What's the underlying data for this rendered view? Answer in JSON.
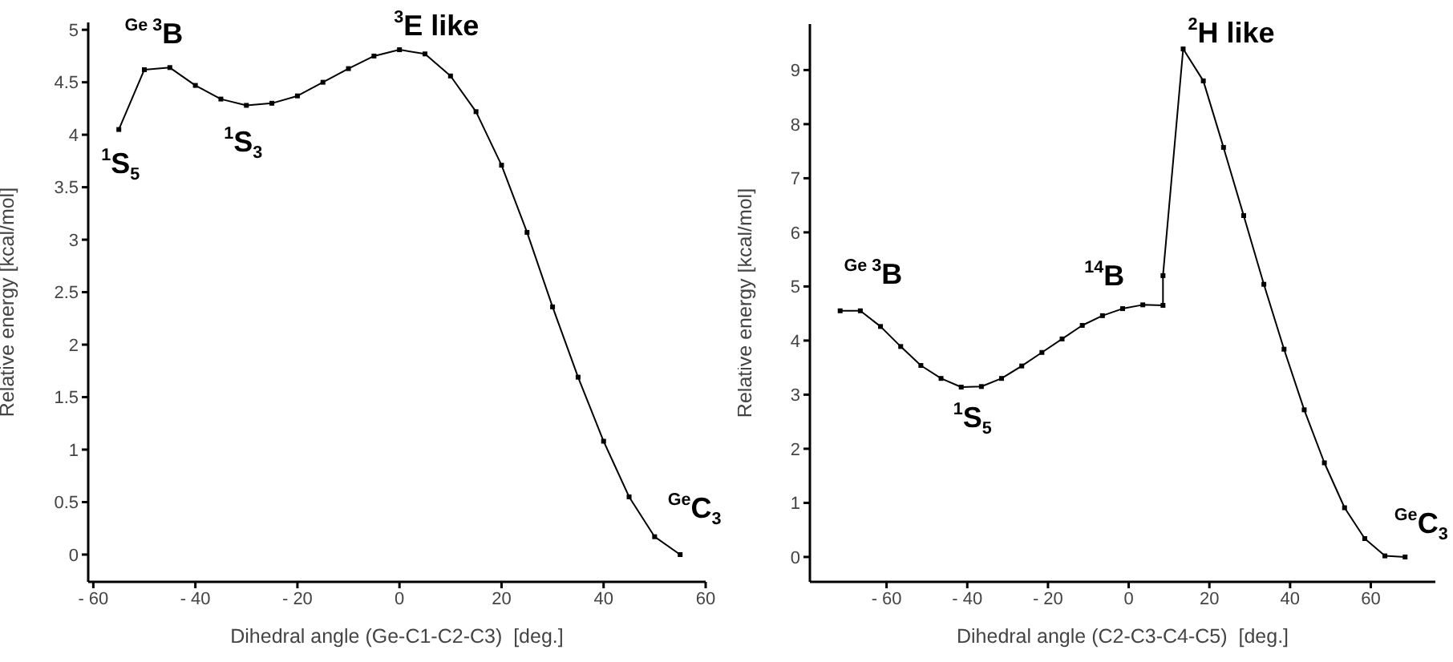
{
  "chart_data": [
    {
      "type": "line",
      "xlabel": "Dihedral angle (Ge-C1-C2-C3)  [deg.]",
      "ylabel": "Relative energy [kcal/mol]",
      "marker": "square",
      "grid": false,
      "legend": false,
      "x": [
        -55,
        -50,
        -45,
        -40,
        -35,
        -30,
        -25,
        -20,
        -15,
        -10,
        -5,
        0,
        5,
        10,
        15,
        20,
        25,
        30,
        35,
        40,
        45,
        50,
        55
      ],
      "series": [
        {
          "color": "#000000",
          "values": [
            4.05,
            4.62,
            4.64,
            4.47,
            4.34,
            4.28,
            4.3,
            4.37,
            4.5,
            4.63,
            4.75,
            4.81,
            4.77,
            4.56,
            4.22,
            3.71,
            3.07,
            2.36,
            1.69,
            1.08,
            0.55,
            0.17,
            0
          ]
        }
      ],
      "xlim": [
        -61,
        60
      ],
      "xticks": [
        {
          "value": -60,
          "label": "- 60"
        },
        {
          "value": -40,
          "label": "- 40"
        },
        {
          "value": -20,
          "label": "- 20"
        },
        0,
        20,
        40,
        60
      ],
      "ylim": [
        -0.26,
        5.07
      ],
      "yticks": [
        0,
        0.5,
        1,
        1.5,
        2,
        2.5,
        3,
        3.5,
        4,
        4.5,
        5
      ],
      "annotations": [
        {
          "text": "$^{1}$S$_{5}$",
          "x": -55,
          "y": 4.05
        },
        {
          "text": "$^{Ge 3}$B",
          "x": -45,
          "y": 4.64
        },
        {
          "text": "$^{1}$S$_{3}$",
          "x": -30,
          "y": 4.28
        },
        {
          "text": "$^{3}$E like",
          "x": 0,
          "y": 4.81
        },
        {
          "text": "$^{Ge}$C$_{3}$",
          "x": 55,
          "y": 0
        }
      ]
    },
    {
      "type": "line",
      "xlabel": "Dihedral angle (C2-C3-C4-C5)  [deg.]",
      "ylabel": "Relative energy [kcal/mol]",
      "marker": "square",
      "grid": false,
      "legend": false,
      "x": [
        -71.5,
        -66.5,
        -61.5,
        -56.5,
        -51.5,
        -46.5,
        -41.5,
        -36.5,
        -31.5,
        -26.5,
        -21.5,
        -16.5,
        -11.5,
        -6.5,
        -1.5,
        3.5,
        8.5,
        8.5,
        13.5,
        18.5,
        23.5,
        28.5,
        33.5,
        38.5,
        43.5,
        48.5,
        53.5,
        58.5,
        63.5,
        68.5
      ],
      "series": [
        {
          "color": "#000000",
          "values": [
            4.55,
            4.55,
            4.26,
            3.89,
            3.54,
            3.3,
            3.14,
            3.15,
            3.3,
            3.53,
            3.78,
            4.03,
            4.28,
            4.46,
            4.59,
            4.66,
            4.65,
            5.2,
            9.39,
            8.8,
            7.57,
            6.31,
            5.04,
            3.84,
            2.72,
            1.74,
            0.91,
            0.34,
            0.02,
            0
          ]
        }
      ],
      "xlim": [
        -79,
        76
      ],
      "xticks": [
        {
          "value": -60,
          "label": "- 60"
        },
        {
          "value": -40,
          "label": "- 40"
        },
        {
          "value": -20,
          "label": "- 20"
        },
        0,
        20,
        40,
        60
      ],
      "ylim": [
        -0.46,
        9.85
      ],
      "yticks": [
        0,
        1,
        2,
        3,
        4,
        5,
        6,
        7,
        8,
        9
      ],
      "annotations": [
        {
          "text": "$^{Ge 3}$B",
          "x": -66.5,
          "y": 4.55
        },
        {
          "text": "$^{14}$B",
          "x": 3.5,
          "y": 4.66
        },
        {
          "text": "$^{2}$H like",
          "x": 13.5,
          "y": 9.39
        },
        {
          "text": "$^{1}$S$_{5}$",
          "x": -41.5,
          "y": 3.14
        },
        {
          "text": "$^{Ge}$C$_{3}$",
          "x": 68.5,
          "y": 0
        }
      ]
    }
  ]
}
